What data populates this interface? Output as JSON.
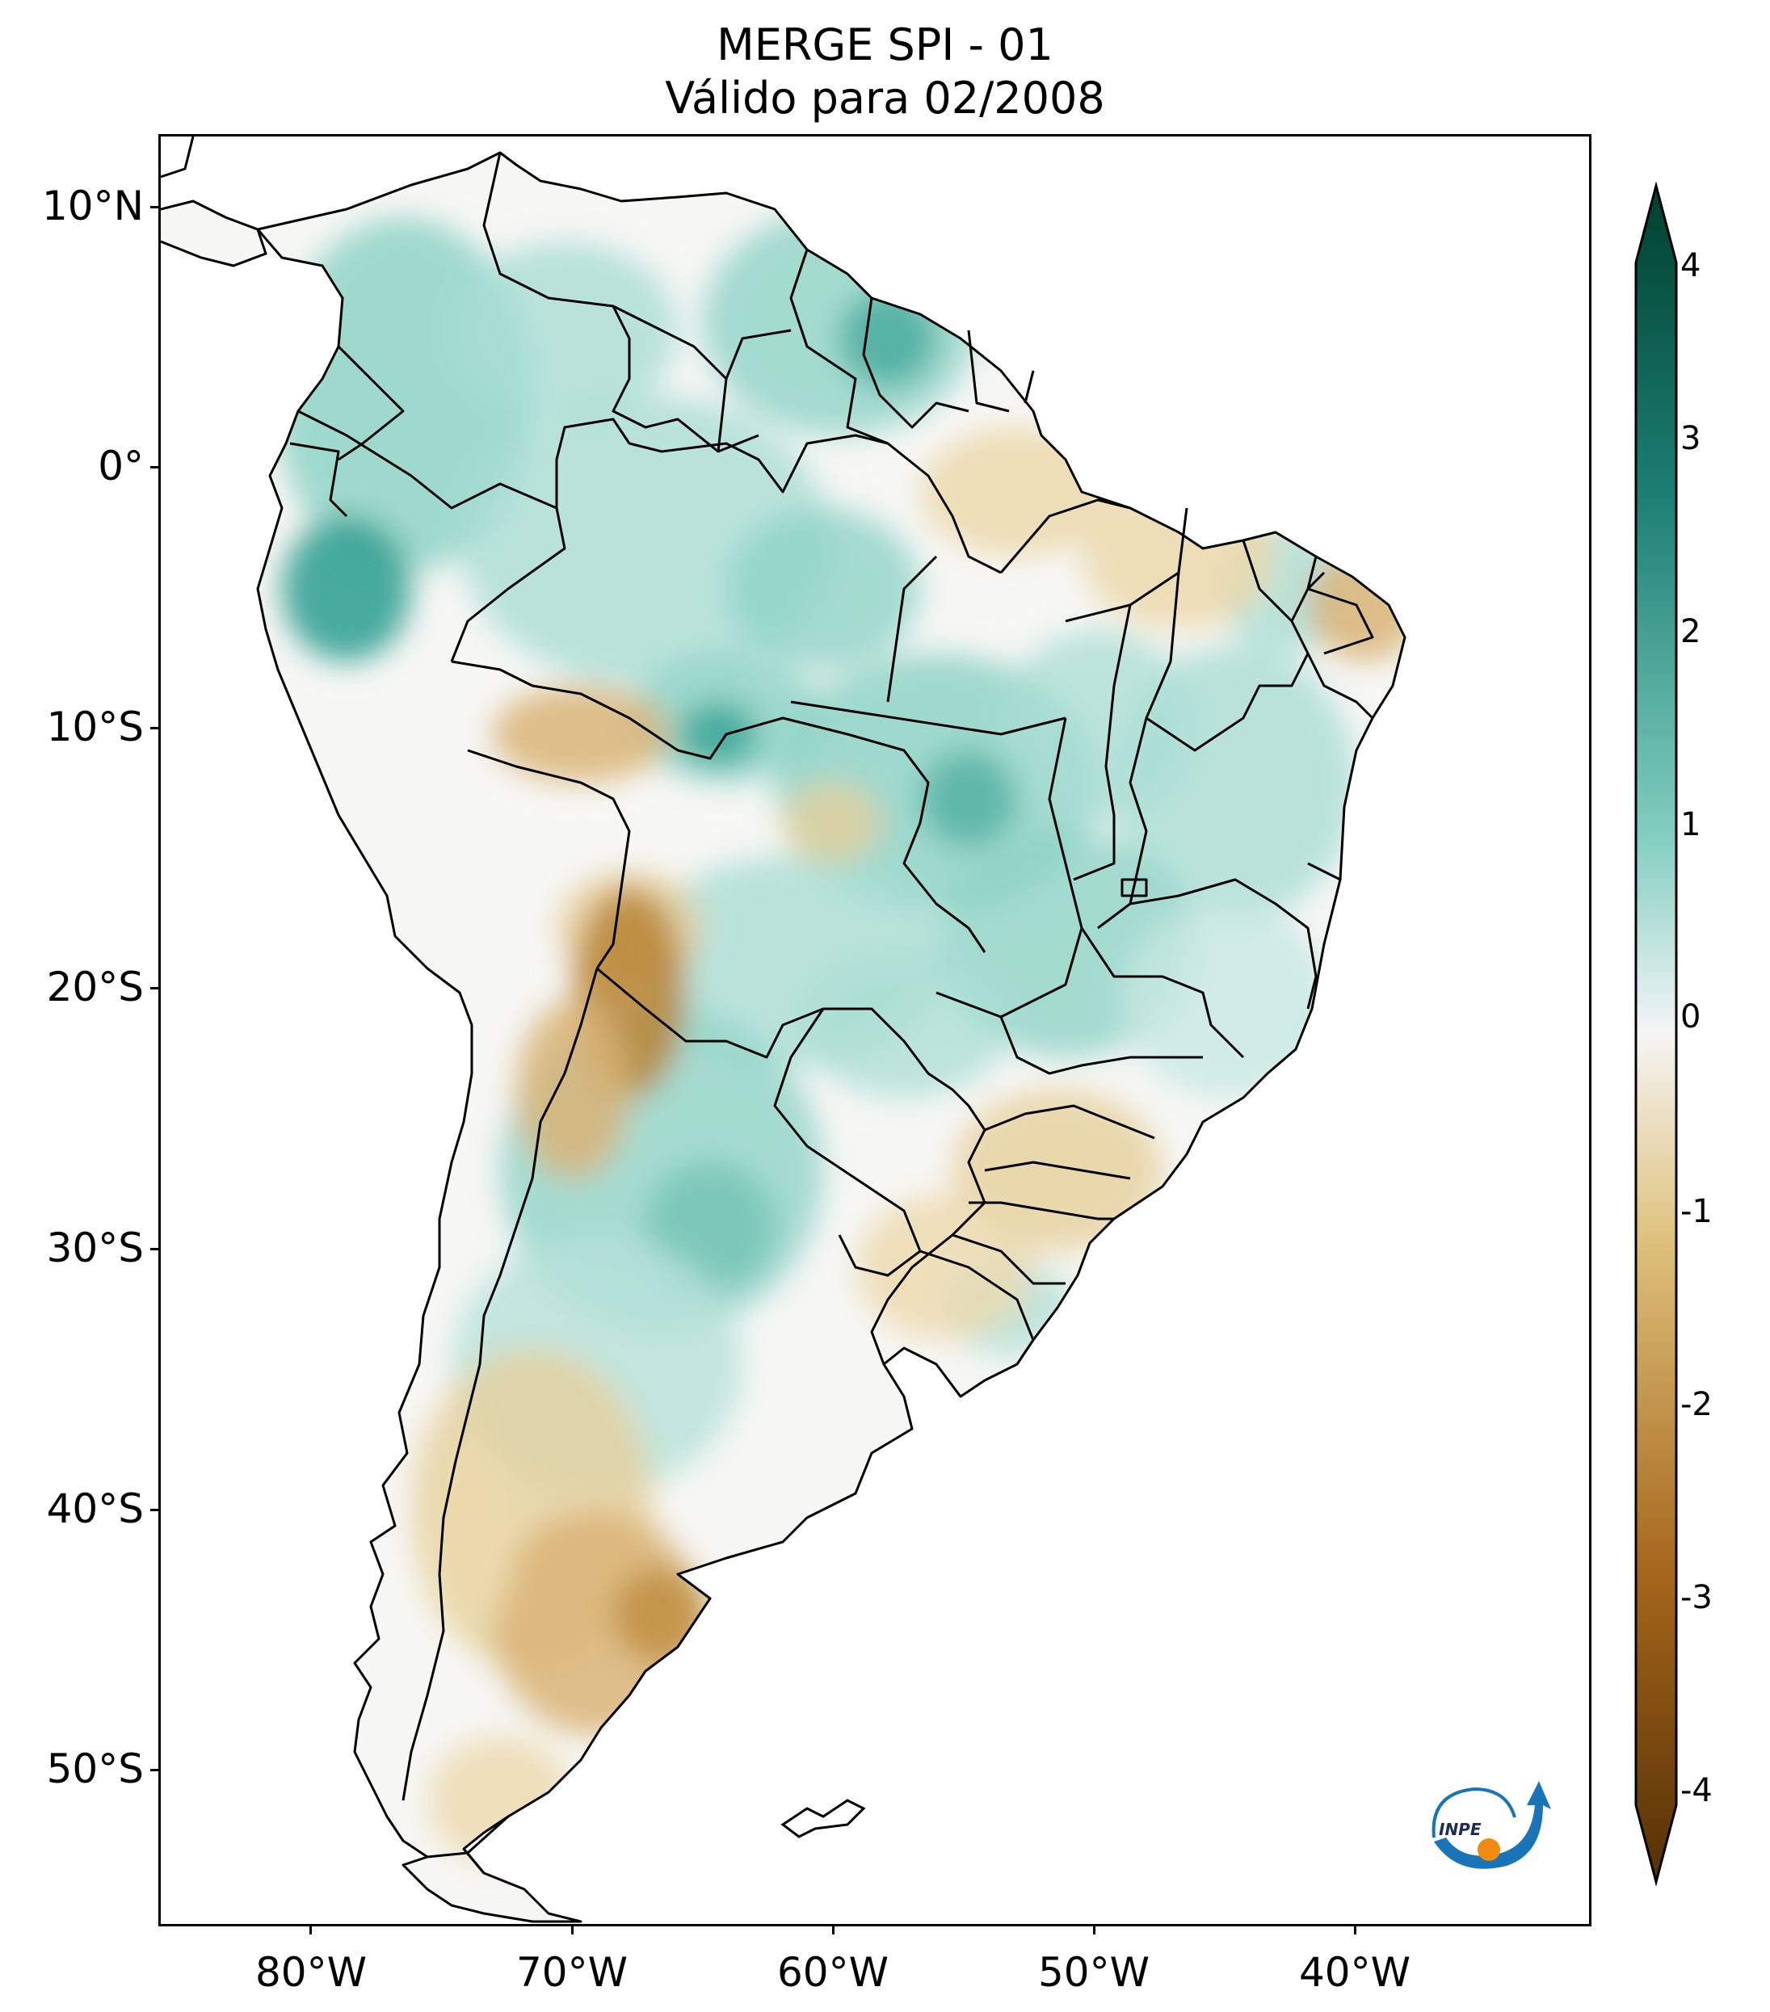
{
  "title": {
    "line1": "MERGE   SPI - 01",
    "line2": "Válido para 02/2008"
  },
  "axes": {
    "lat_ticks": [
      "10°N",
      "0°",
      "10°S",
      "20°S",
      "30°S",
      "40°S",
      "50°S"
    ],
    "lon_ticks": [
      "80°W",
      "70°W",
      "60°W",
      "50°W",
      "40°W"
    ]
  },
  "colorbar": {
    "ticks": [
      "4",
      "3",
      "2",
      "1",
      "0",
      "-1",
      "-2",
      "-3",
      "-4"
    ],
    "range": [
      -4,
      4
    ],
    "colors": {
      "max": "#00402f",
      "high": "#1b7e72",
      "mid_high": "#7fcdbf",
      "neutral": "#f5f5f5",
      "mid_low": "#dfc27d",
      "low": "#a5651a",
      "min": "#543005"
    }
  },
  "logo": {
    "text": "INPE",
    "name": "inpe-logo"
  },
  "map_colors": {
    "wet": "#8fd3c6",
    "wet_strong": "#35a293",
    "dry": "#e6cf9b",
    "dry_strong": "#b98432",
    "border": "#000000"
  }
}
